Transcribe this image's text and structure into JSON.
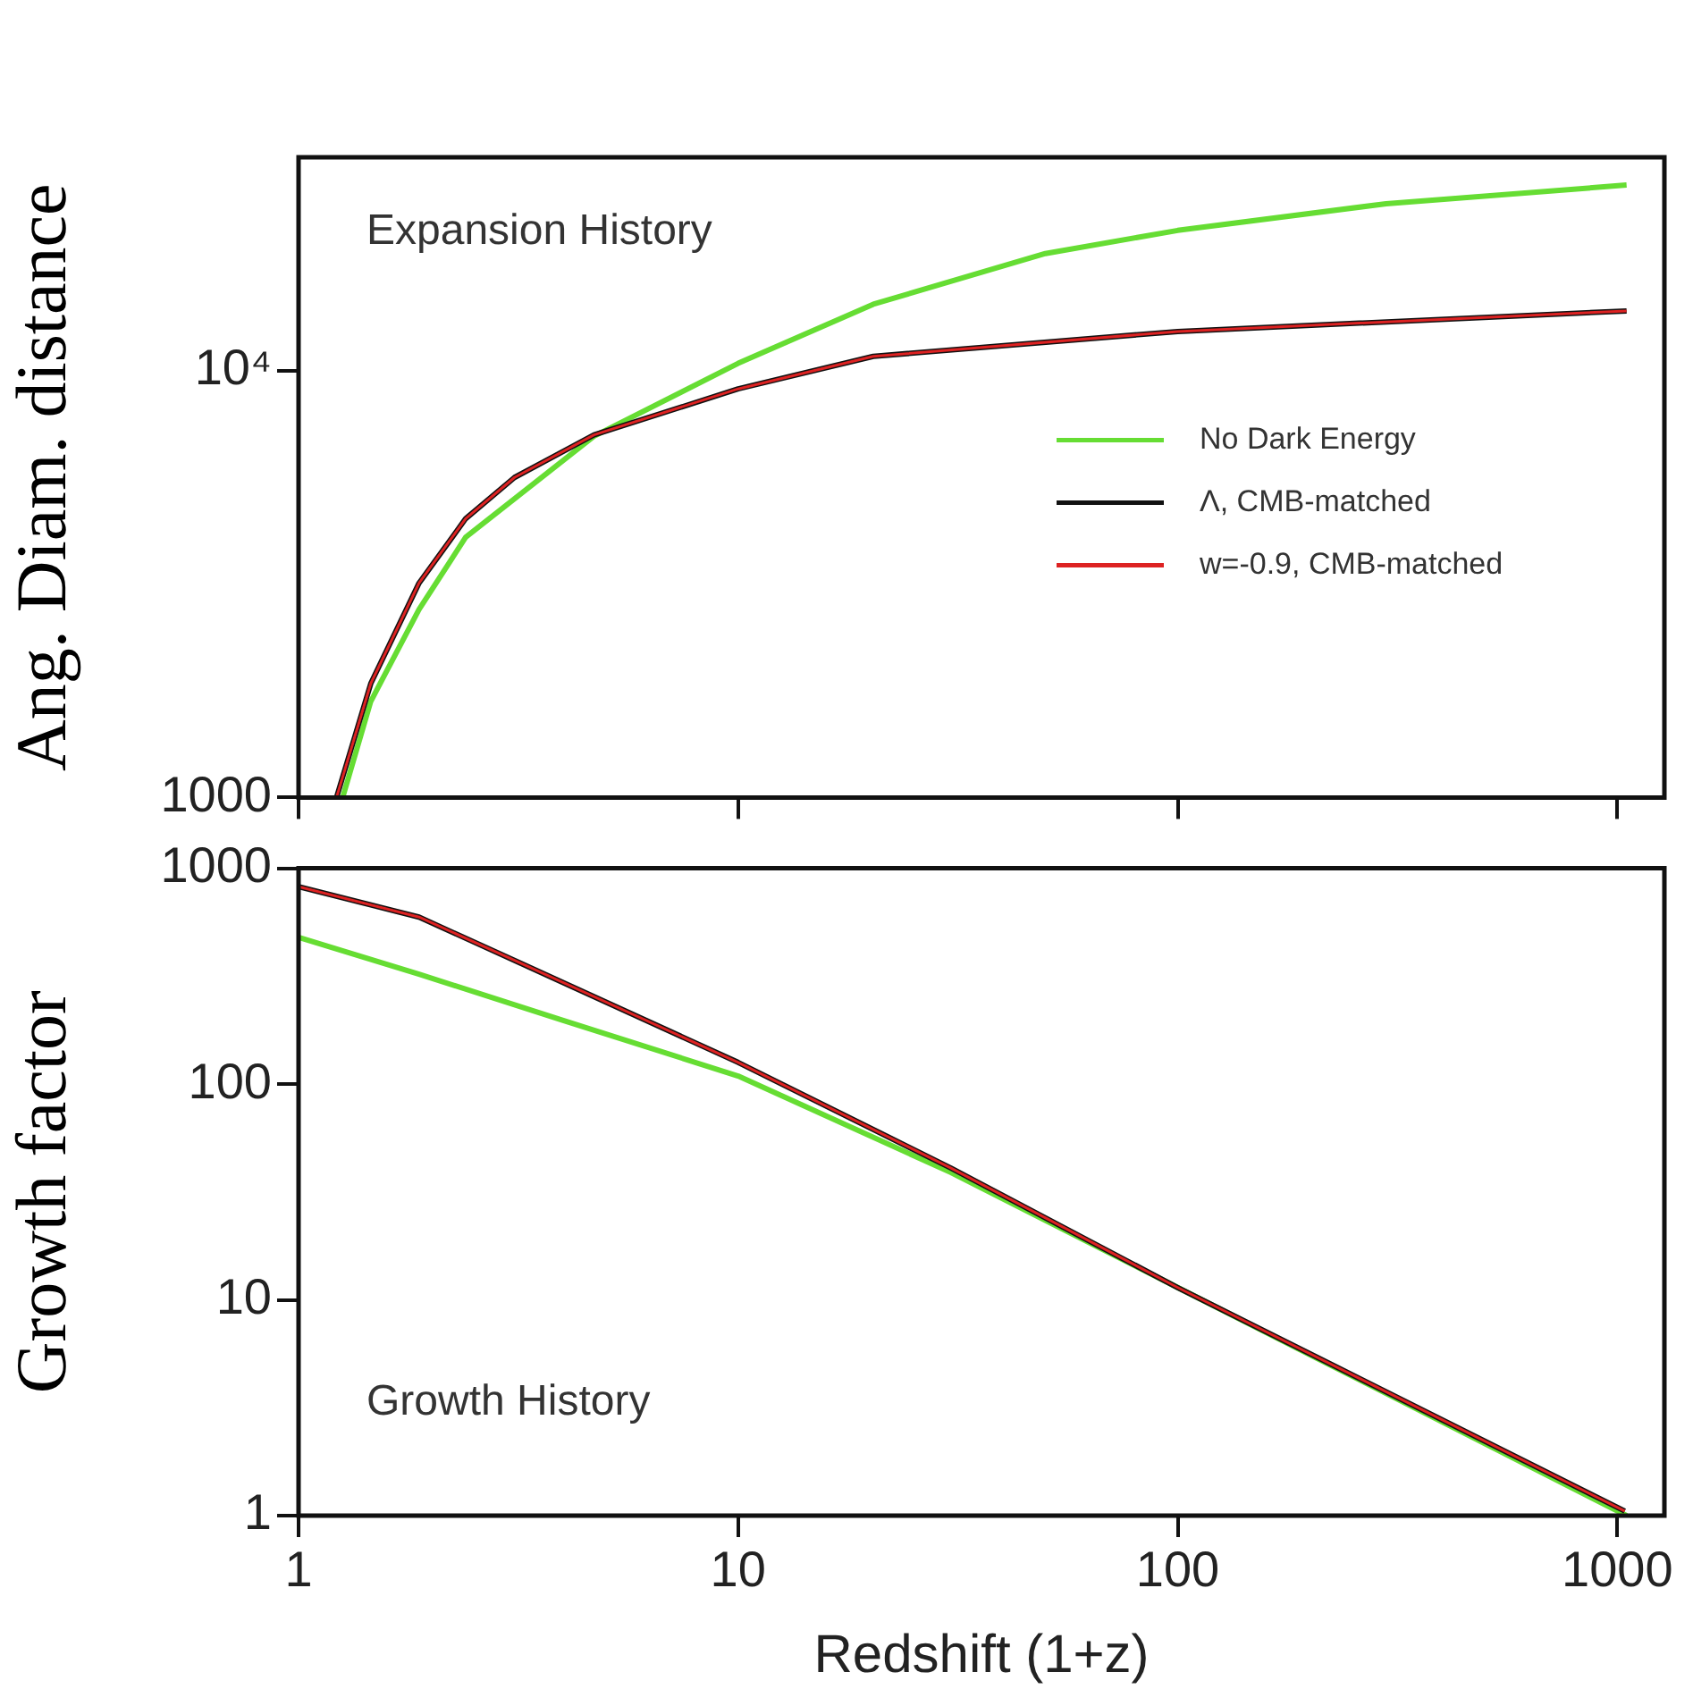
{
  "chart_data": [
    {
      "type": "line",
      "ylabel": "Ang. Diam. distance",
      "annotations": [
        "Expansion History"
      ],
      "log": "xy",
      "xlim": [
        1,
        1280
      ],
      "xticks": [
        1,
        10,
        100,
        1000
      ],
      "ylim": [
        1000,
        31600
      ],
      "yticks": [
        1000,
        {
          "value": 10000,
          "label": "10⁴"
        }
      ],
      "tick_labels": "y",
      "grid": false,
      "legend": "bottom right",
      "marker": "none",
      "line_style": "solid",
      "series": [
        {
          "name": "No Dark Energy",
          "color": "#66dd33",
          "x": [
            1.26,
            1.46,
            1.88,
            2.4,
            4.7,
            10,
            20.3,
            50,
            100,
            298,
            1050
          ],
          "values": [
            1000,
            1680,
            2760,
            4070,
            7020,
            10400,
            14300,
            18800,
            21300,
            24600,
            27200
          ]
        },
        {
          "name": "Λ, CMB-matched",
          "color": "#111111",
          "x": [
            1.22,
            1.46,
            1.88,
            2.4,
            3.1,
            4.7,
            10,
            20.3,
            100,
            1050
          ],
          "values": [
            1000,
            1850,
            3180,
            4500,
            5620,
            7070,
            9060,
            10800,
            12350,
            13800
          ]
        },
        {
          "name": "w=-0.9, CMB-matched",
          "color": "#dd2222",
          "x": [
            1.22,
            1.46,
            1.88,
            2.4,
            3.1,
            4.7,
            10,
            20.3,
            100,
            1050
          ],
          "values": [
            1000,
            1850,
            3180,
            4500,
            5620,
            7070,
            9060,
            10800,
            12350,
            13800
          ]
        }
      ]
    },
    {
      "type": "line",
      "xlabel": "Redshift (1+z)",
      "ylabel": "Growth factor",
      "annotations": [
        "Growth History"
      ],
      "log": "xy",
      "xlim": [
        1,
        1280
      ],
      "xticks": [
        1,
        10,
        100,
        1000
      ],
      "ylim": [
        1,
        1000
      ],
      "yticks": [
        1,
        10,
        100,
        1000
      ],
      "grid": false,
      "legend": false,
      "marker": "none",
      "line_style": "solid",
      "series": [
        {
          "color": "#66dd33",
          "x": [
            1,
            1.88,
            4,
            10,
            30.5,
            100,
            1050
          ],
          "values": [
            479,
            323,
            197,
            109,
            38.9,
            11.4,
            1
          ]
        },
        {
          "color": "#111111",
          "x": [
            1,
            1.88,
            3.1,
            10,
            30.5,
            100,
            1040
          ],
          "values": [
            822,
            594,
            374,
            126,
            40.8,
            11.4,
            1.05
          ]
        },
        {
          "color": "#dd2222",
          "x": [
            1,
            1.88,
            3.1,
            10,
            30.5,
            100,
            1040
          ],
          "values": [
            822,
            594,
            374,
            126,
            40.8,
            11.4,
            1.05
          ]
        }
      ]
    }
  ]
}
